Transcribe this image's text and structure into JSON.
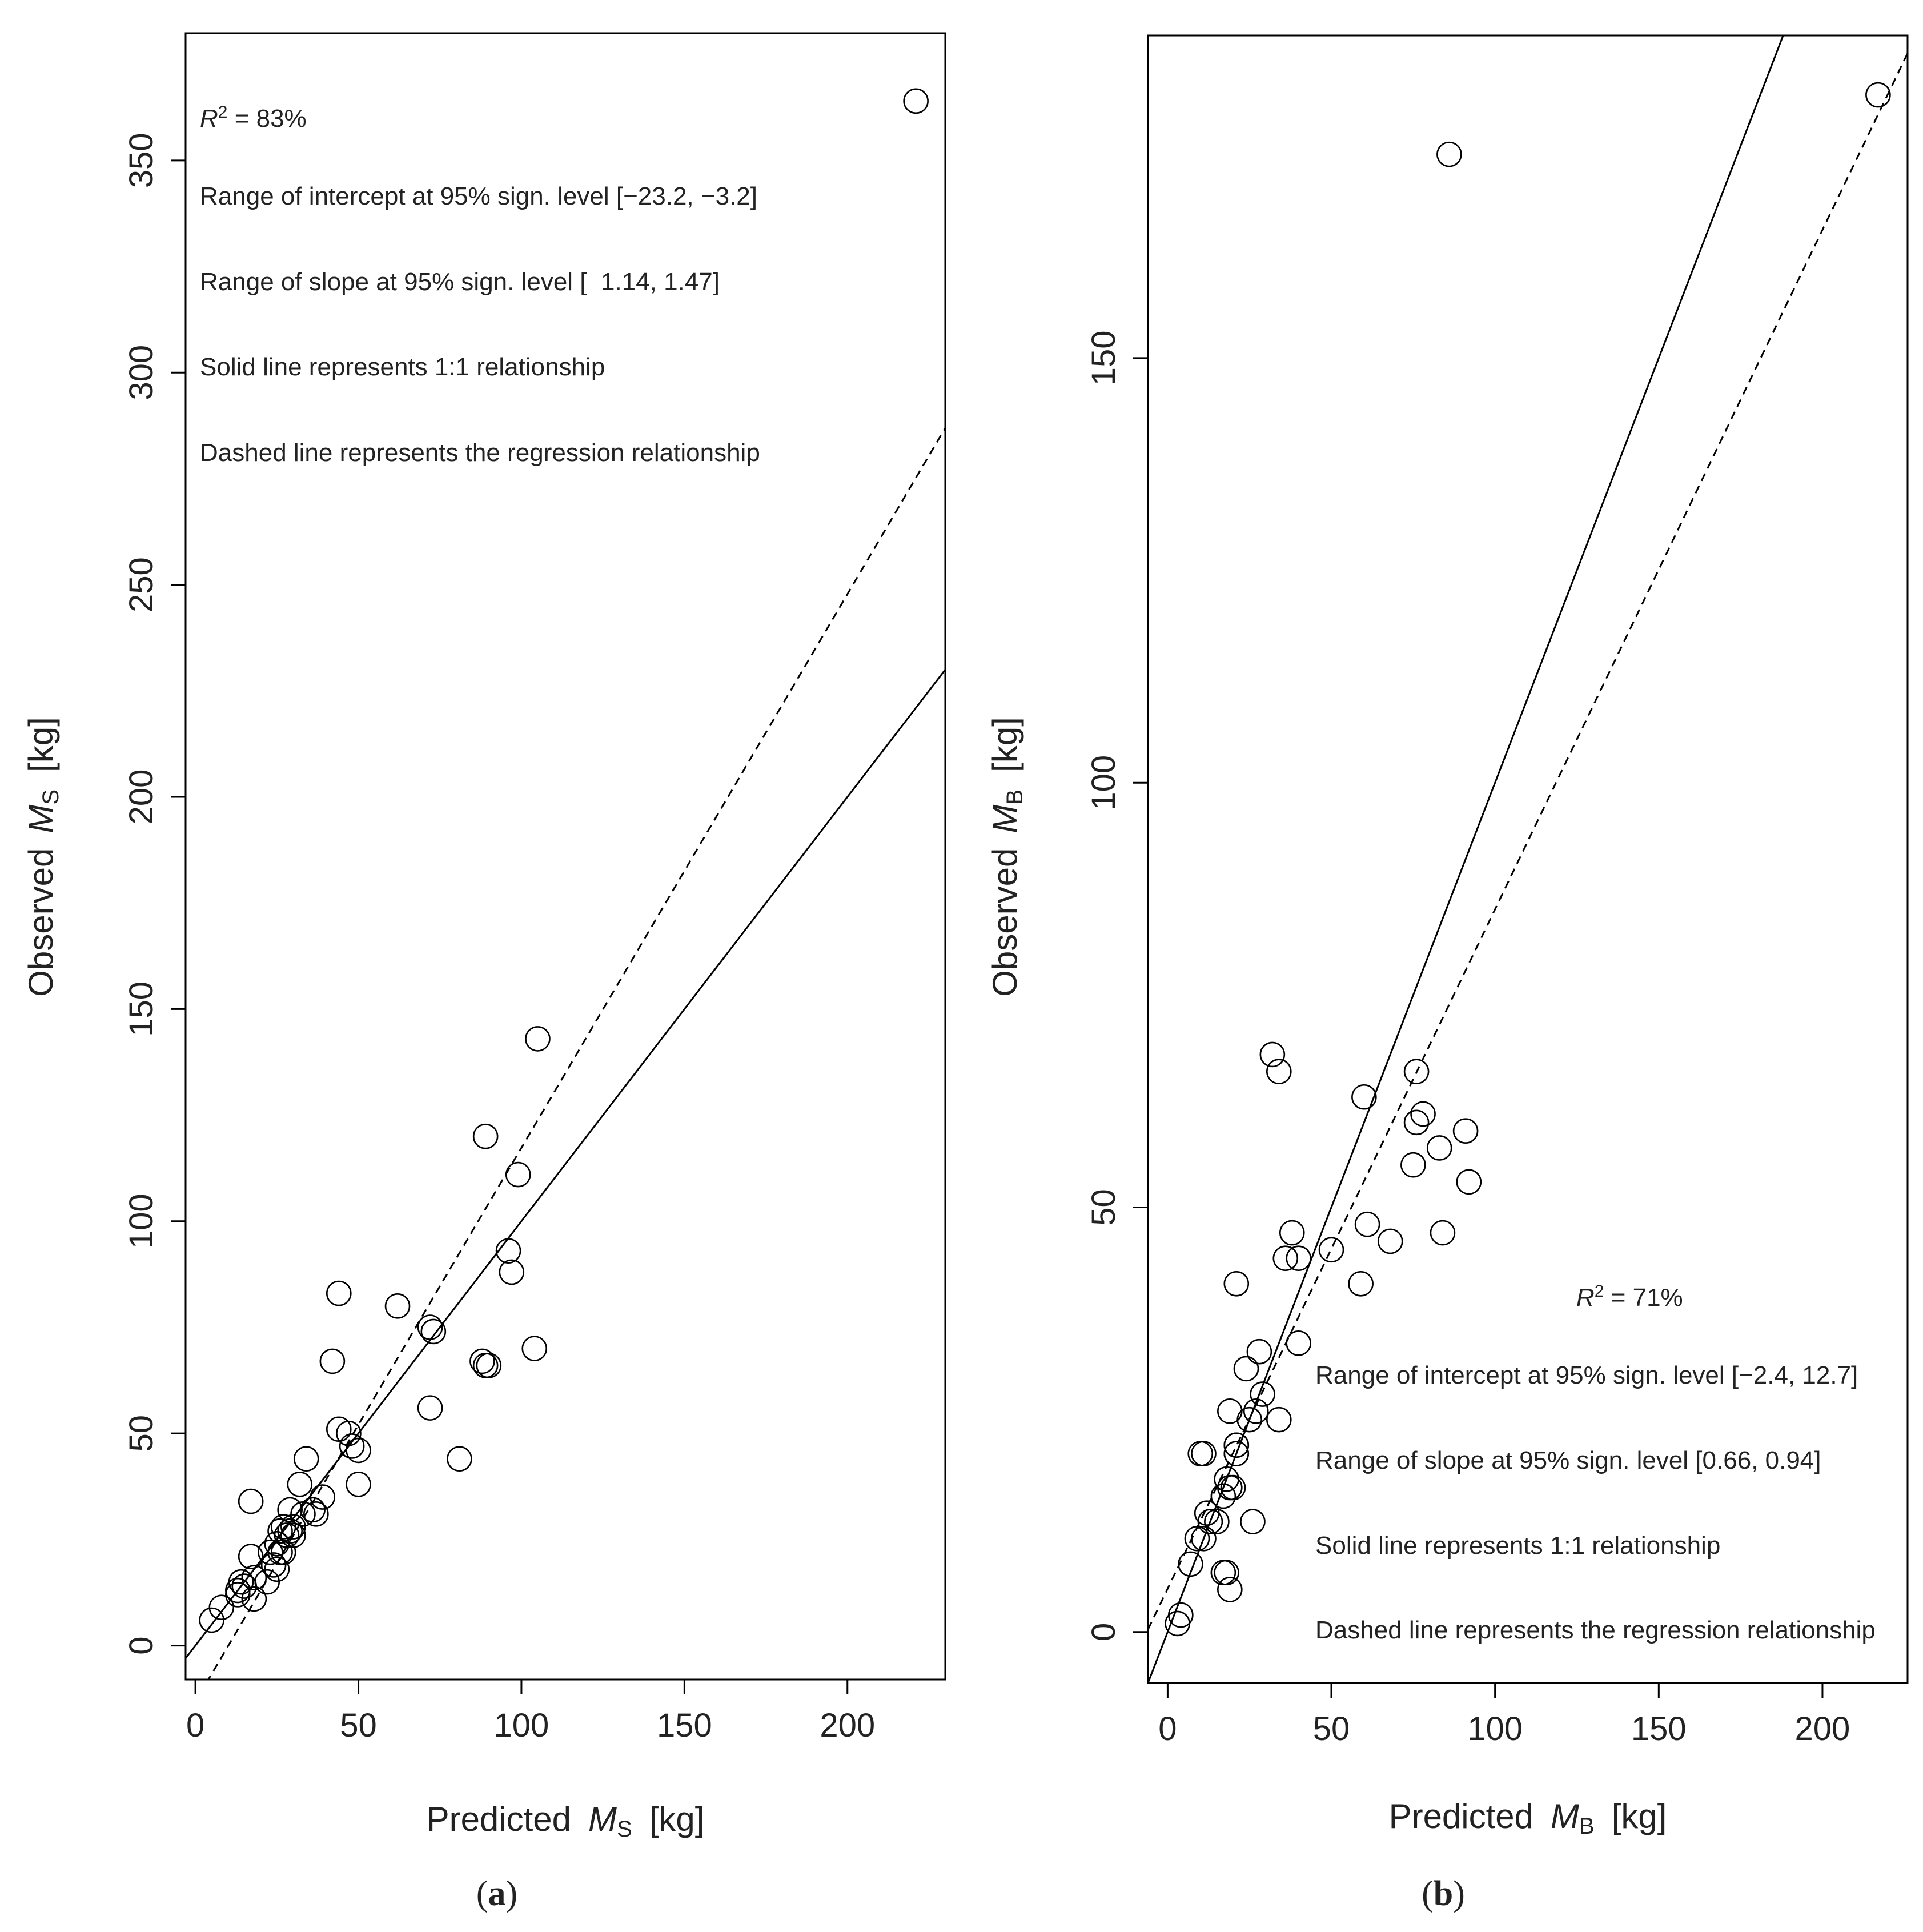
{
  "chart_data": [
    {
      "type": "scatter",
      "panel_label_prefix": "(",
      "panel_label": "a",
      "panel_label_suffix": ")",
      "xlim": [
        -3,
        230
      ],
      "ylim": [
        -8,
        380
      ],
      "xticks": [
        0,
        50,
        100,
        150,
        200
      ],
      "yticks": [
        0,
        50,
        100,
        150,
        200,
        250,
        300,
        350
      ],
      "xlabel_prefix": "Predicted",
      "xlabel_var": "M",
      "xlabel_sub": "S",
      "xlabel_unit": "[kg]",
      "ylabel_prefix": "Observed",
      "ylabel_var": "M",
      "ylabel_sub": "S",
      "ylabel_unit": "[kg]",
      "annotation_r2_symbol": "R",
      "annotation_r2_exp": "2",
      "annotation_r2_value": " = 83%",
      "annotations": [
        "Range of intercept at 95% sign. level [−23.2, −3.2]",
        "Range of slope at 95% sign. level [  1.14, 1.47]",
        "Solid line represents 1:1 relationship",
        "Dashed line represents the regression relationship"
      ],
      "reference_line": {
        "style": "solid",
        "intercept": 0,
        "slope": 1
      },
      "regression_line": {
        "style": "dashed",
        "intercept": -13.2,
        "slope": 1.305
      },
      "x": [
        221,
        105,
        89,
        99,
        96,
        97,
        44,
        62,
        72,
        73,
        42,
        72,
        88,
        89,
        90,
        104,
        81,
        44,
        47,
        48,
        50,
        50,
        34,
        17,
        32,
        39,
        29,
        33,
        36,
        37,
        26,
        27,
        28,
        29,
        30,
        30,
        25,
        26,
        27,
        23,
        24,
        25,
        17,
        18,
        22,
        14,
        15,
        13,
        13,
        18,
        8,
        5
      ],
      "y": [
        364,
        143,
        120,
        111,
        93,
        88,
        83,
        80,
        75,
        74,
        67,
        56,
        67,
        66,
        66,
        70,
        44,
        51,
        50,
        47,
        46,
        38,
        44,
        34,
        38,
        35,
        32,
        31,
        32,
        31,
        27,
        28,
        26,
        27,
        28,
        26,
        24,
        22,
        22,
        22,
        19,
        18,
        21,
        16,
        15,
        15,
        14,
        12,
        13,
        11,
        9,
        6
      ]
    },
    {
      "type": "scatter",
      "panel_label_prefix": "(",
      "panel_label": "b",
      "panel_label_suffix": ")",
      "xlim": [
        -6,
        226
      ],
      "ylim": [
        -6,
        188
      ],
      "xticks": [
        0,
        50,
        100,
        150,
        200
      ],
      "yticks": [
        0,
        50,
        100,
        150
      ],
      "xlabel_prefix": "Predicted",
      "xlabel_var": "M",
      "xlabel_sub": "B",
      "xlabel_unit": "[kg]",
      "ylabel_prefix": "Observed",
      "ylabel_var": "M",
      "ylabel_sub": "B",
      "ylabel_unit": "[kg]",
      "annotation_r2_symbol": "R",
      "annotation_r2_exp": "2",
      "annotation_r2_value": " = 71%",
      "annotations": [
        "Range of intercept at 95% sign. level [−2.4, 12.7]",
        "Range of slope at 95% sign. level [0.66, 0.94]",
        "Solid line represents 1:1 relationship",
        "Dashed line represents the regression relationship"
      ],
      "reference_line": {
        "style": "solid",
        "intercept": 0,
        "slope": 1
      },
      "regression_line": {
        "style": "dashed",
        "intercept": 5.1,
        "slope": 0.8
      },
      "x": [
        217,
        86,
        32,
        34,
        60,
        76,
        76,
        78,
        91,
        83,
        75,
        92,
        61,
        84,
        68,
        38,
        50,
        36,
        40,
        59,
        21,
        40,
        28,
        24,
        29,
        27,
        34,
        25,
        19,
        21,
        21,
        21,
        21,
        20,
        18,
        19,
        17,
        11,
        12,
        10,
        13,
        26,
        11,
        15,
        9,
        17,
        18,
        7,
        19,
        4,
        3
      ],
      "y": [
        181,
        174,
        68,
        66,
        63,
        66,
        60,
        61,
        59,
        57,
        55,
        53,
        48,
        47,
        46,
        47,
        45,
        44,
        44,
        41,
        41,
        34,
        33,
        31,
        28,
        26,
        25,
        25,
        26,
        22,
        22,
        21,
        21,
        17,
        18,
        17,
        16,
        21,
        14,
        21,
        13,
        13,
        11,
        13,
        11,
        7,
        7,
        8,
        5,
        2,
        1
      ]
    }
  ]
}
